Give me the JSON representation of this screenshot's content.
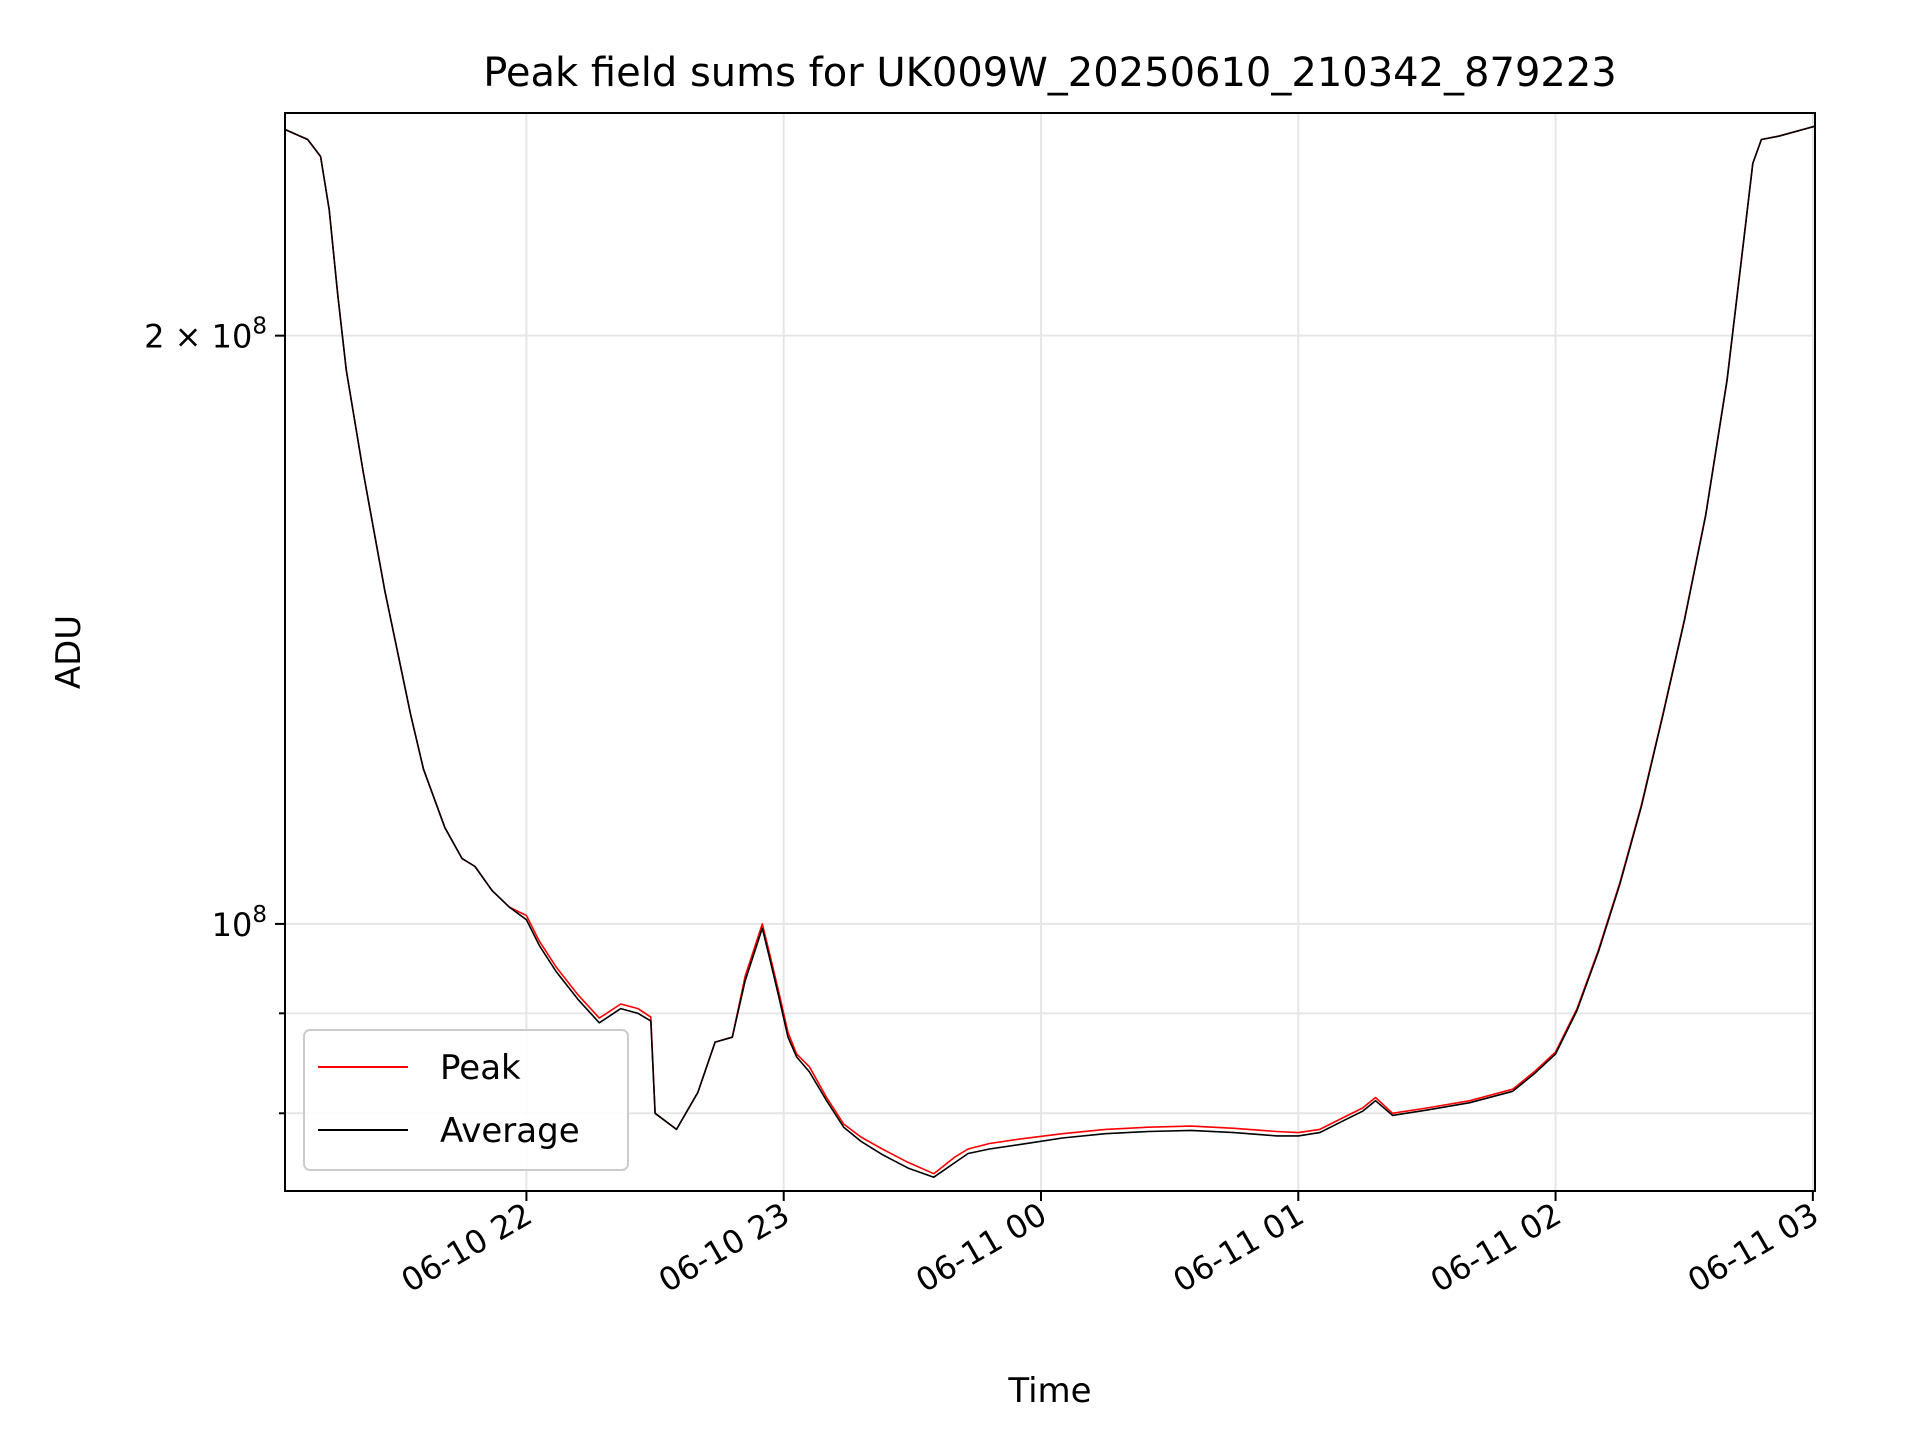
{
  "chart_data": {
    "type": "line",
    "title": "Peak field sums for UK009W_20250610_210342_879223",
    "xlabel": "Time",
    "ylabel": "ADU",
    "yscale": "log",
    "xlim": [
      "2025-06-10 21:03:42",
      "2025-06-11 03:00:30"
    ],
    "ylim": [
      73000000,
      260000000
    ],
    "grid": true,
    "legend_position": "lower left",
    "x_ticks": [
      {
        "t": "2025-06-10 22:00",
        "label": "06-10 22"
      },
      {
        "t": "2025-06-10 23:00",
        "label": "06-10 23"
      },
      {
        "t": "2025-06-11 00:00",
        "label": "06-11 00"
      },
      {
        "t": "2025-06-11 01:00",
        "label": "06-11 01"
      },
      {
        "t": "2025-06-11 02:00",
        "label": "06-11 02"
      },
      {
        "t": "2025-06-11 03:00",
        "label": "06-11 03"
      }
    ],
    "y_ticks": [
      {
        "value": 100000000,
        "label_base": "10",
        "label_exp": "8"
      },
      {
        "value": 200000000,
        "label_base": "2 × 10",
        "label_exp": "8"
      }
    ],
    "y_minor_ticks": [
      80000000,
      90000000
    ],
    "series": [
      {
        "name": "Peak",
        "color": "#ff0000",
        "x": [
          "2025-06-10 21:03:42",
          "2025-06-10 21:09",
          "2025-06-10 21:12",
          "2025-06-10 21:14",
          "2025-06-10 21:16",
          "2025-06-10 21:18",
          "2025-06-10 21:22",
          "2025-06-10 21:27",
          "2025-06-10 21:33",
          "2025-06-10 21:36",
          "2025-06-10 21:41",
          "2025-06-10 21:45",
          "2025-06-10 21:48",
          "2025-06-10 21:52",
          "2025-06-10 21:56",
          "2025-06-10 22:00",
          "2025-06-10 22:03",
          "2025-06-10 22:07",
          "2025-06-10 22:12",
          "2025-06-10 22:17",
          "2025-06-10 22:22",
          "2025-06-10 22:26",
          "2025-06-10 22:29",
          "2025-06-10 22:30",
          "2025-06-10 22:35",
          "2025-06-10 22:40",
          "2025-06-10 22:44",
          "2025-06-10 22:48",
          "2025-06-10 22:51",
          "2025-06-10 22:55",
          "2025-06-10 22:57",
          "2025-06-10 22:59",
          "2025-06-10 23:01",
          "2025-06-10 23:03",
          "2025-06-10 23:06",
          "2025-06-10 23:10",
          "2025-06-10 23:14",
          "2025-06-10 23:18",
          "2025-06-10 23:23",
          "2025-06-10 23:29",
          "2025-06-10 23:35",
          "2025-06-10 23:40",
          "2025-06-10 23:43",
          "2025-06-10 23:48",
          "2025-06-10 23:55",
          "2025-06-11 00:05",
          "2025-06-11 00:15",
          "2025-06-11 00:25",
          "2025-06-11 00:35",
          "2025-06-11 00:45",
          "2025-06-11 00:55",
          "2025-06-11 01:00",
          "2025-06-11 01:05",
          "2025-06-11 01:10",
          "2025-06-11 01:15",
          "2025-06-11 01:18",
          "2025-06-11 01:22",
          "2025-06-11 01:30",
          "2025-06-11 01:40",
          "2025-06-11 01:50",
          "2025-06-11 01:55",
          "2025-06-11 02:00",
          "2025-06-11 02:05",
          "2025-06-11 02:10",
          "2025-06-11 02:15",
          "2025-06-11 02:20",
          "2025-06-11 02:25",
          "2025-06-11 02:30",
          "2025-06-11 02:35",
          "2025-06-11 02:40",
          "2025-06-11 02:44",
          "2025-06-11 02:46",
          "2025-06-11 02:48",
          "2025-06-11 02:52",
          "2025-06-11 03:00:30"
        ],
        "y": [
          255000000,
          252000000,
          247000000,
          232000000,
          210000000,
          192000000,
          170000000,
          148000000,
          128000000,
          120000000,
          112000000,
          108000000,
          107000000,
          104000000,
          102000000,
          101000000,
          98000000,
          95000000,
          92000000,
          89500000,
          91000000,
          90500000,
          89600000,
          80000000,
          78500000,
          82000000,
          87000000,
          87500000,
          94000000,
          100000000,
          96000000,
          92000000,
          88000000,
          85800000,
          84500000,
          81500000,
          79000000,
          77800000,
          76700000,
          75500000,
          74500000,
          76000000,
          76700000,
          77200000,
          77600000,
          78100000,
          78500000,
          78700000,
          78800000,
          78600000,
          78300000,
          78200000,
          78500000,
          79500000,
          80500000,
          81500000,
          80000000,
          80500000,
          81200000,
          82300000,
          84000000,
          86000000,
          90500000,
          97000000,
          105000000,
          115000000,
          128000000,
          143000000,
          162000000,
          190000000,
          225000000,
          245000000,
          252000000,
          253000000,
          256000000
        ]
      },
      {
        "name": "Average",
        "color": "#000000",
        "x": [
          "2025-06-10 21:03:42",
          "2025-06-10 21:09",
          "2025-06-10 21:12",
          "2025-06-10 21:14",
          "2025-06-10 21:16",
          "2025-06-10 21:18",
          "2025-06-10 21:22",
          "2025-06-10 21:27",
          "2025-06-10 21:33",
          "2025-06-10 21:36",
          "2025-06-10 21:41",
          "2025-06-10 21:45",
          "2025-06-10 21:48",
          "2025-06-10 21:52",
          "2025-06-10 21:56",
          "2025-06-10 22:00",
          "2025-06-10 22:03",
          "2025-06-10 22:07",
          "2025-06-10 22:12",
          "2025-06-10 22:17",
          "2025-06-10 22:22",
          "2025-06-10 22:26",
          "2025-06-10 22:29",
          "2025-06-10 22:30",
          "2025-06-10 22:35",
          "2025-06-10 22:40",
          "2025-06-10 22:44",
          "2025-06-10 22:48",
          "2025-06-10 22:51",
          "2025-06-10 22:55",
          "2025-06-10 22:57",
          "2025-06-10 22:59",
          "2025-06-10 23:01",
          "2025-06-10 23:03",
          "2025-06-10 23:06",
          "2025-06-10 23:10",
          "2025-06-10 23:14",
          "2025-06-10 23:18",
          "2025-06-10 23:23",
          "2025-06-10 23:29",
          "2025-06-10 23:35",
          "2025-06-10 23:40",
          "2025-06-10 23:43",
          "2025-06-10 23:48",
          "2025-06-10 23:55",
          "2025-06-11 00:05",
          "2025-06-11 00:15",
          "2025-06-11 00:25",
          "2025-06-11 00:35",
          "2025-06-11 00:45",
          "2025-06-11 00:55",
          "2025-06-11 01:00",
          "2025-06-11 01:05",
          "2025-06-11 01:10",
          "2025-06-11 01:15",
          "2025-06-11 01:18",
          "2025-06-11 01:22",
          "2025-06-11 01:30",
          "2025-06-11 01:40",
          "2025-06-11 01:50",
          "2025-06-11 01:55",
          "2025-06-11 02:00",
          "2025-06-11 02:05",
          "2025-06-11 02:10",
          "2025-06-11 02:15",
          "2025-06-11 02:20",
          "2025-06-11 02:25",
          "2025-06-11 02:30",
          "2025-06-11 02:35",
          "2025-06-11 02:40",
          "2025-06-11 02:44",
          "2025-06-11 02:46",
          "2025-06-11 02:48",
          "2025-06-11 02:52",
          "2025-06-11 03:00:30"
        ],
        "y": [
          255000000,
          252000000,
          247000000,
          232000000,
          210000000,
          192000000,
          170000000,
          148000000,
          128000000,
          120000000,
          112000000,
          108000000,
          107000000,
          104000000,
          102000000,
          100500000,
          97500000,
          94500000,
          91500000,
          89000000,
          90500000,
          90000000,
          89200000,
          80000000,
          78500000,
          82000000,
          87000000,
          87500000,
          93500000,
          99500000,
          95500000,
          91500000,
          87500000,
          85500000,
          84000000,
          81200000,
          78700000,
          77400000,
          76200000,
          75000000,
          74200000,
          75500000,
          76300000,
          76700000,
          77100000,
          77700000,
          78100000,
          78300000,
          78400000,
          78200000,
          77900000,
          77900000,
          78200000,
          79200000,
          80200000,
          81200000,
          79800000,
          80300000,
          81000000,
          82100000,
          83800000,
          85800000,
          90300000,
          96800000,
          104800000,
          114800000,
          127800000,
          142800000,
          161800000,
          189800000,
          224800000,
          245000000,
          252000000,
          253000000,
          256000000
        ]
      }
    ]
  }
}
